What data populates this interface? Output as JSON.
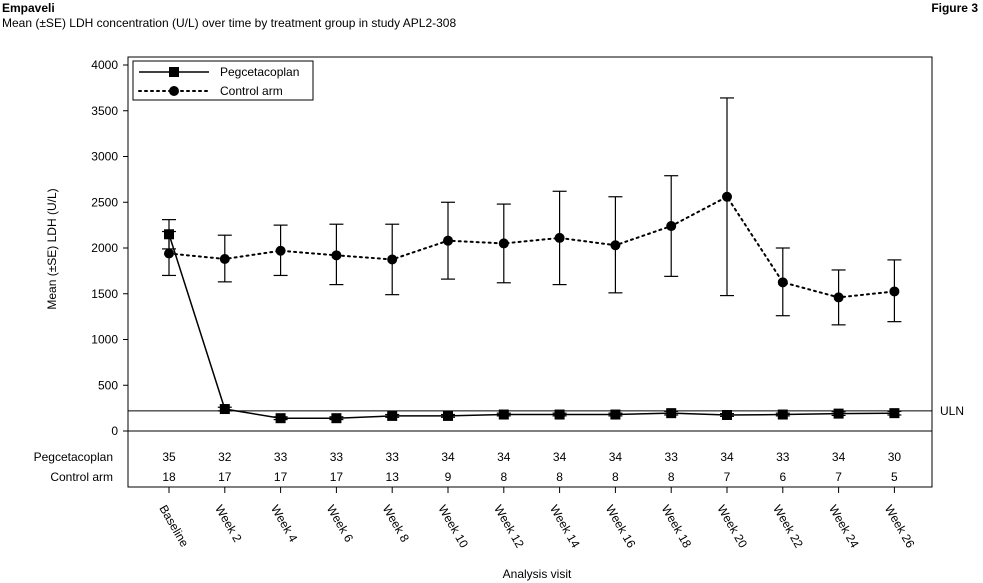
{
  "header": {
    "brand": "Empaveli",
    "subtitle": "Mean (±SE) LDH concentration (U/L) over time by treatment group in study APL2-308",
    "figure_label": "Figure 3"
  },
  "chart_data": {
    "type": "line",
    "title": "Mean (±SE) LDH concentration (U/L) over time by treatment group in study APL2-308",
    "xlabel": "Analysis visit",
    "ylabel": "Mean (±SE) LDH (U/L)",
    "ylim": [
      0,
      4000
    ],
    "yticks": [
      0,
      500,
      1000,
      1500,
      2000,
      2500,
      3000,
      3500,
      4000
    ],
    "grid": false,
    "legend_position": "top-left",
    "categories": [
      "Baseline",
      "Week 2",
      "Week 4",
      "Week 6",
      "Week 8",
      "Week 10",
      "Week 12",
      "Week 14",
      "Week 16",
      "Week 18",
      "Week 20",
      "Week 22",
      "Week 24",
      "Week 26"
    ],
    "series": [
      {
        "name": "Pegcetacoplan",
        "marker": "square",
        "line_style": "solid",
        "color": "#000000",
        "values": [
          2150,
          240,
          140,
          140,
          165,
          165,
          180,
          180,
          180,
          195,
          175,
          180,
          190,
          195
        ],
        "se_low": [
          1990,
          220,
          125,
          125,
          150,
          150,
          165,
          165,
          165,
          175,
          160,
          165,
          170,
          175
        ],
        "se_high": [
          2310,
          260,
          155,
          155,
          180,
          180,
          195,
          195,
          195,
          215,
          190,
          195,
          210,
          215
        ]
      },
      {
        "name": "Control arm",
        "marker": "circle",
        "line_style": "dotted",
        "color": "#000000",
        "values": [
          1940,
          1880,
          1970,
          1920,
          1875,
          2080,
          2050,
          2110,
          2030,
          2240,
          2560,
          1625,
          1460,
          1525
        ],
        "se_low": [
          1700,
          1630,
          1700,
          1600,
          1490,
          1660,
          1620,
          1600,
          1510,
          1690,
          1480,
          1260,
          1160,
          1195
        ],
        "se_high": [
          2180,
          2140,
          2250,
          2260,
          2260,
          2500,
          2480,
          2620,
          2560,
          2790,
          3640,
          2000,
          1760,
          1870
        ]
      }
    ],
    "reference_line": {
      "value": 220,
      "label": "ULN"
    },
    "n_at_risk": {
      "rows": [
        {
          "label": "Pegcetacoplan",
          "values": [
            "35",
            "32",
            "33",
            "33",
            "33",
            "34",
            "34",
            "34",
            "34",
            "33",
            "34",
            "33",
            "34",
            "30"
          ]
        },
        {
          "label": "Control arm",
          "values": [
            "18",
            "17",
            "17",
            "17",
            "13",
            "9",
            "8",
            "8",
            "8",
            "8",
            "7",
            "6",
            "7",
            "5"
          ]
        }
      ]
    }
  }
}
